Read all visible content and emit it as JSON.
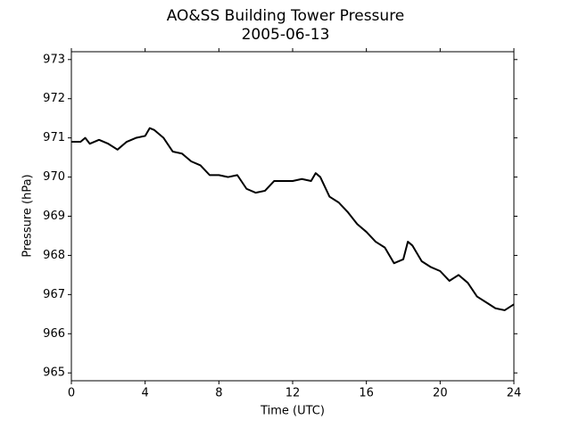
{
  "chart_data": {
    "type": "line",
    "title": "AO&SS Building Tower Pressure",
    "subtitle": "2005-06-13",
    "x_label": "Time (UTC)",
    "y_label": "Pressure (hPa)",
    "xlim": [
      0,
      24
    ],
    "xticks": [
      0,
      4,
      8,
      12,
      16,
      20,
      24
    ],
    "ylim": [
      964.8,
      973.2
    ],
    "yticks": [
      965,
      966,
      967,
      968,
      969,
      970,
      971,
      972,
      973
    ],
    "series": [
      {
        "color": "#000000",
        "x": [
          0,
          0.5,
          0.75,
          1,
          1.5,
          2,
          2.5,
          3,
          3.5,
          4,
          4.25,
          4.5,
          5,
          5.5,
          6,
          6.5,
          7,
          7.5,
          8,
          8.5,
          9,
          9.5,
          10,
          10.5,
          11,
          11.5,
          12,
          12.5,
          13,
          13.25,
          13.5,
          14,
          14.5,
          15,
          15.5,
          16,
          16.5,
          17,
          17.5,
          18,
          18.25,
          18.5,
          19,
          19.5,
          20,
          20.5,
          21,
          21.5,
          22,
          22.5,
          23,
          23.5,
          24
        ],
        "values": [
          970.9,
          970.9,
          971.0,
          970.85,
          970.95,
          970.85,
          970.7,
          970.9,
          971.0,
          971.05,
          971.25,
          971.2,
          971.0,
          970.65,
          970.6,
          970.4,
          970.3,
          970.05,
          970.05,
          970.0,
          970.05,
          969.7,
          969.6,
          969.65,
          969.9,
          969.9,
          969.9,
          969.95,
          969.9,
          970.1,
          970.0,
          969.5,
          969.35,
          969.1,
          968.8,
          968.6,
          968.35,
          968.2,
          967.8,
          967.9,
          968.35,
          968.25,
          967.85,
          967.7,
          967.6,
          967.35,
          967.5,
          967.3,
          966.95,
          966.8,
          966.65,
          966.6,
          966.75
        ]
      }
    ]
  }
}
